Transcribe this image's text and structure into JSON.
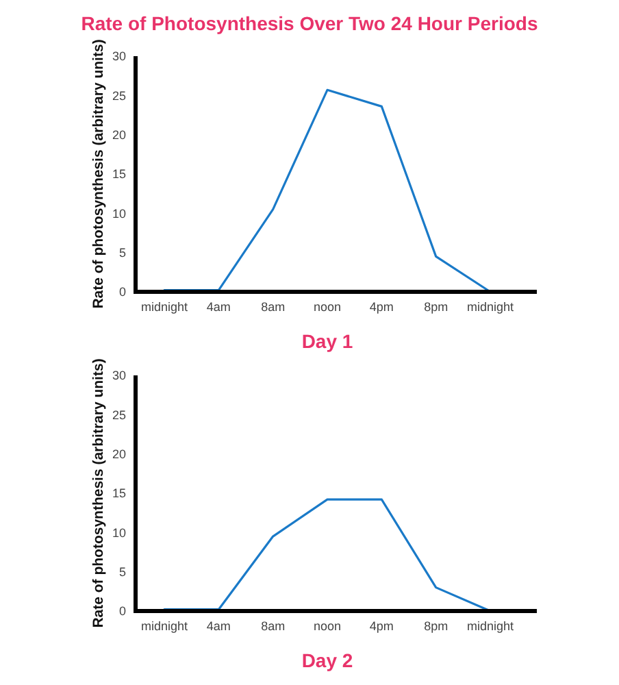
{
  "chart_data": [
    {
      "type": "line",
      "title": "Rate of Photosynthesis Over Two 24 Hour Periods",
      "xlabel": "Day 1",
      "ylabel": "Rate of photosynthesis (arbitrary units)",
      "categories": [
        "midnight",
        "4am",
        "8am",
        "noon",
        "4pm",
        "8pm",
        "midnight"
      ],
      "series": [
        {
          "color": "#1a7ac8",
          "values": [
            0.2,
            0.2,
            10.5,
            25.7,
            23.6,
            4.5,
            0
          ]
        }
      ],
      "ylim": [
        0,
        30
      ],
      "yticks": [
        0,
        5,
        10,
        15,
        20,
        25,
        30
      ],
      "grid": false,
      "marker": "none",
      "line_style": "solid"
    },
    {
      "type": "line",
      "xlabel": "Day 2",
      "ylabel": "Rate of photosynthesis (arbitrary units)",
      "categories": [
        "midnight",
        "4am",
        "8am",
        "noon",
        "4pm",
        "8pm",
        "midnight"
      ],
      "series": [
        {
          "color": "#1a7ac8",
          "values": [
            0.2,
            0.2,
            9.5,
            14.2,
            14.2,
            3,
            0
          ]
        }
      ],
      "ylim": [
        0,
        30
      ],
      "yticks": [
        0,
        5,
        10,
        15,
        20,
        25,
        30
      ],
      "grid": false,
      "marker": "none",
      "line_style": "solid"
    }
  ]
}
